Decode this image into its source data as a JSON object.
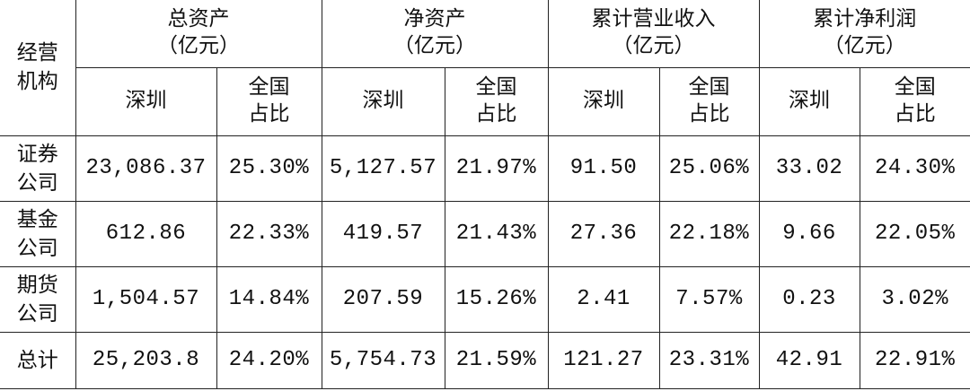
{
  "header": {
    "row_label": [
      "经营",
      "机构"
    ],
    "groups": [
      {
        "title": "总资产",
        "unit": "（亿元）"
      },
      {
        "title": "净资产",
        "unit": "（亿元）"
      },
      {
        "title": "累计营业收入",
        "unit": "（亿元）"
      },
      {
        "title": "累计净利润",
        "unit": "（亿元）"
      }
    ],
    "sub": {
      "shenzhen": "深圳",
      "share": [
        "全国",
        "占比"
      ]
    }
  },
  "rows": [
    {
      "label": [
        "证券",
        "公司"
      ],
      "values": [
        "23,086.37",
        "25.30%",
        "5,127.57",
        "21.97%",
        "91.50",
        "25.06%",
        "33.02",
        "24.30%"
      ]
    },
    {
      "label": [
        "基金",
        "公司"
      ],
      "values": [
        "612.86",
        "22.33%",
        "419.57",
        "21.43%",
        "27.36",
        "22.18%",
        "9.66",
        "22.05%"
      ]
    },
    {
      "label": [
        "期货",
        "公司"
      ],
      "values": [
        "1,504.57",
        "14.84%",
        "207.59",
        "15.26%",
        "2.41",
        "7.57%",
        "0.23",
        "3.02%"
      ]
    },
    {
      "label": [
        "总计"
      ],
      "values": [
        "25,203.8",
        "24.20%",
        "5,754.73",
        "21.59%",
        "121.27",
        "23.31%",
        "42.91",
        "22.91%"
      ]
    }
  ]
}
